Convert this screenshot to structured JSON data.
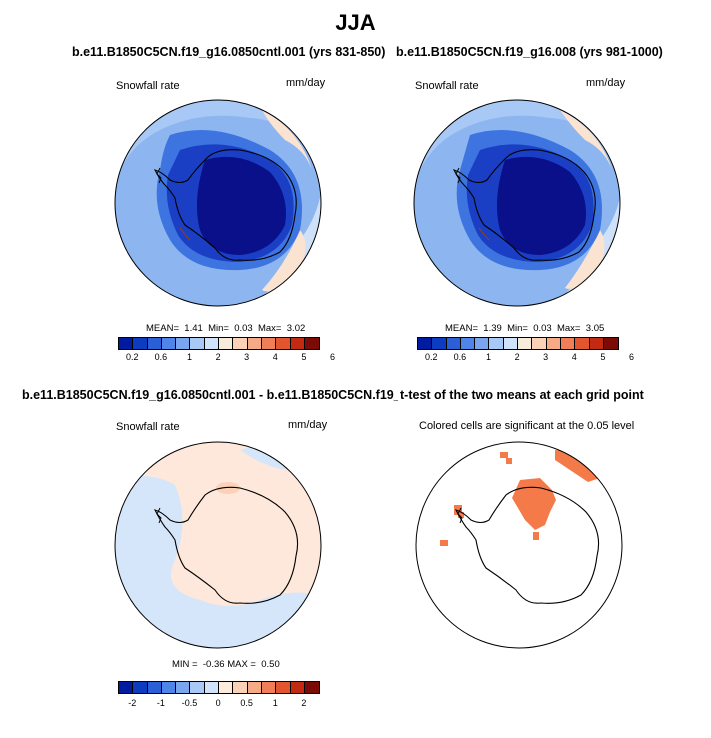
{
  "figure_title": "JJA",
  "panels": [
    {
      "title": "b.e11.B1850C5CN.f19_g16.0850cntl.001 (yrs 831-850)",
      "variable": "Snowfall rate",
      "units": "mm/day",
      "stats": {
        "mean_label": "MEAN=",
        "mean": "1.41",
        "min_label": "Min=",
        "min": "0.03",
        "max_label": "Max=",
        "max": "3.02"
      }
    },
    {
      "title": "b.e11.B1850C5CN.f19_g16.008 (yrs 981-1000)",
      "variable": "Snowfall rate",
      "units": "mm/day",
      "stats": {
        "mean_label": "MEAN=",
        "mean": "1.39",
        "min_label": "Min=",
        "min": "0.03",
        "max_label": "Max=",
        "max": "3.05"
      }
    },
    {
      "title": "b.e11.B1850C5CN.f19_g16.0850cntl.001 - b.e11.B1850C5CN.f19_g16.008",
      "variable": "Snowfall rate",
      "units": "mm/day",
      "stats": {
        "min_label": "MIN =",
        "min": "-0.36",
        "max_label": "MAX =",
        "max": "0.50"
      }
    },
    {
      "title": "t-test of the two means at each grid point",
      "subtitle": "Colored cells are significant at the 0.05 level"
    }
  ],
  "colorbar_abs": {
    "colors": [
      "#001aa0",
      "#0d3cc0",
      "#2a5fd8",
      "#4f84e8",
      "#7aa6f0",
      "#a8c8f5",
      "#d0e3fa",
      "#f7ecdc",
      "#fbd2b8",
      "#f6aa85",
      "#f07e58",
      "#e3552f",
      "#c22a12",
      "#7c0a05"
    ],
    "labels": [
      "0.2",
      "0.6",
      "1",
      "2",
      "3",
      "4",
      "5",
      "6"
    ]
  },
  "colorbar_diff": {
    "colors": [
      "#001aa0",
      "#0d3cc0",
      "#2a5fd8",
      "#4f84e8",
      "#7aa6f0",
      "#a8c8f5",
      "#d0e3fa",
      "#fdebdc",
      "#fbd2b8",
      "#f6aa85",
      "#f07e58",
      "#e3552f",
      "#c22a12",
      "#7c0a05"
    ],
    "labels": [
      "-2",
      "-1",
      "-0.5",
      "0",
      "0.5",
      "1",
      "2"
    ]
  },
  "map_colors": {
    "deep": "#0a0f8a",
    "dark_blue": "#1a3fc4",
    "mid_blue": "#3d74e0",
    "light_blue": "#8db6f0",
    "pale_blue": "#cfe1f8",
    "peach": "#fbe3d2",
    "diff_blue": "#d6e6fa",
    "diff_peach": "#fde8db",
    "sig_orange": "#f47a4a"
  }
}
